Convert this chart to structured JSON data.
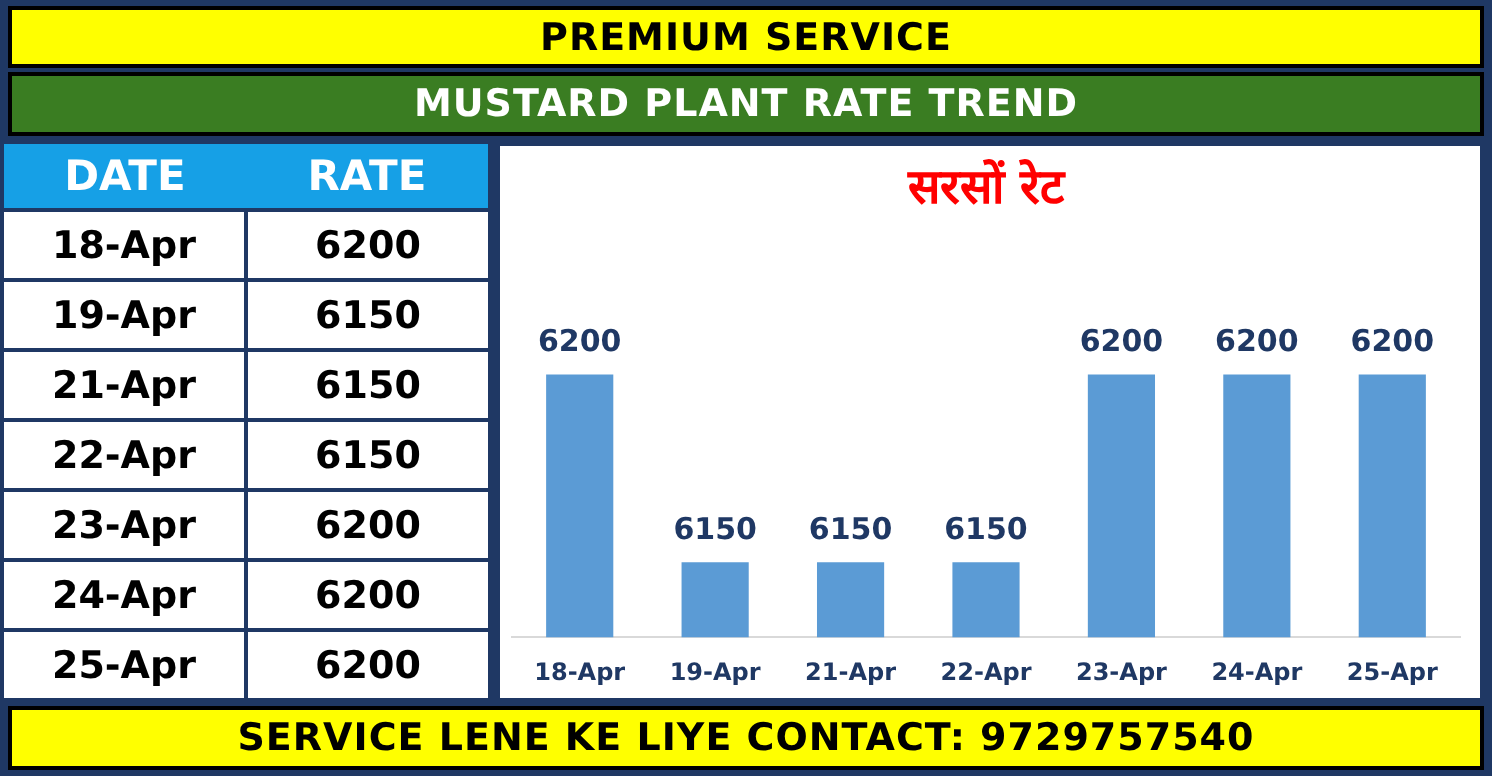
{
  "chart_data": [
    {
      "type": "other",
      "title": "PREMIUM SERVICE",
      "subtitle": "MUSTARD PLANT RATE TREND",
      "annotations": [
        "DATE",
        "RATE",
        "18-Apr",
        "6200",
        "19-Apr",
        "6150",
        "21-Apr",
        "6150",
        "22-Apr",
        "6150",
        "23-Apr",
        "6200",
        "24-Apr",
        "6200",
        "25-Apr",
        "6200"
      ]
    },
    {
      "type": "bar",
      "title": "सरसों रेट",
      "categories": [
        "18-Apr",
        "19-Apr",
        "21-Apr",
        "22-Apr",
        "23-Apr",
        "24-Apr",
        "25-Apr"
      ],
      "values": [
        6200,
        6150,
        6150,
        6150,
        6200,
        6200,
        6200
      ],
      "color": "#5b9bd5",
      "data_labels": true,
      "annotations": [
        "SERVICE LENE KE LIYE CONTACT: 9729757540"
      ]
    }
  ]
}
